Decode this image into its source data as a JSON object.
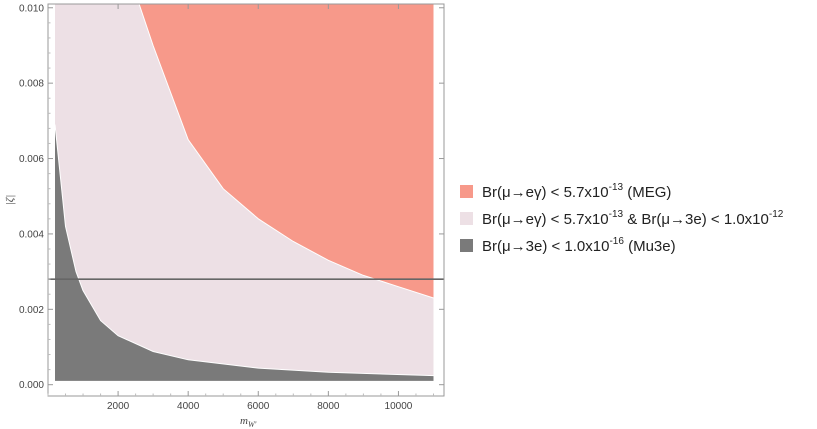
{
  "chart_data": {
    "type": "area",
    "title": "",
    "xlabel": "m",
    "xlabel_sub": "W'",
    "ylabel": "|ζ|",
    "xlim": [
      0,
      11300
    ],
    "ylim": [
      -0.0003,
      0.0101
    ],
    "xticks": [
      2000,
      4000,
      6000,
      8000,
      10000
    ],
    "xtick_labels": [
      "2000",
      "4000",
      "6000",
      "8000",
      "10000"
    ],
    "yticks": [
      0.0,
      0.002,
      0.004,
      0.006,
      0.008,
      0.01
    ],
    "ytick_labels": [
      "0.000",
      "0.002",
      "0.004",
      "0.006",
      "0.008",
      "0.010"
    ],
    "x_domain": [
      200,
      11000
    ],
    "horizontal_line": {
      "y": 0.0028,
      "color": "#666666"
    },
    "regions": [
      {
        "name": "Br(μ→eγ) < 5.7x10^-13 & Br(μ→3e) < 1.0x10^-12",
        "color": "#EDE0E5",
        "lower": "region-0",
        "boundary_upper": [
          [
            200,
            0.0069
          ],
          [
            500,
            0.0042
          ],
          [
            800,
            0.003
          ],
          [
            1000,
            0.0025
          ],
          [
            1500,
            0.0017
          ],
          [
            2000,
            0.0013
          ],
          [
            3000,
            0.00088
          ],
          [
            4000,
            0.00066
          ],
          [
            6000,
            0.00044
          ],
          [
            8000,
            0.00033
          ],
          [
            11000,
            0.00024
          ]
        ]
      },
      {
        "name": "Br(μ→eγ) < 5.7x10^-13 (MEG)",
        "color": "#F7998A",
        "boundary_lower": [
          [
            2600,
            0.0101
          ],
          [
            3000,
            0.009
          ],
          [
            4000,
            0.0065
          ],
          [
            5000,
            0.0052
          ],
          [
            6000,
            0.0044
          ],
          [
            7000,
            0.0038
          ],
          [
            8000,
            0.0033
          ],
          [
            9000,
            0.0029
          ],
          [
            10000,
            0.0026
          ],
          [
            11000,
            0.0023
          ]
        ]
      },
      {
        "name": "Br(μ→3e) < 1.0x10^-16 (Mu3e)",
        "color": "#7A7A7A",
        "boundary_upper": [
          [
            200,
            0.0069
          ],
          [
            500,
            0.0042
          ],
          [
            800,
            0.003
          ],
          [
            1000,
            0.0025
          ],
          [
            1500,
            0.0017
          ],
          [
            2000,
            0.0013
          ],
          [
            3000,
            0.00088
          ],
          [
            4000,
            0.00066
          ],
          [
            6000,
            0.00044
          ],
          [
            8000,
            0.00033
          ],
          [
            11000,
            0.00024
          ]
        ]
      }
    ],
    "legend": {
      "position": "right",
      "items": [
        {
          "color": "#F7998A",
          "text": "Br(μ→eγ) < 5.7x10",
          "exp": "-13",
          "text2": " (MEG)",
          "exp2": "",
          "text3": ""
        },
        {
          "color": "#EDE0E5",
          "text": "Br(μ→eγ) < 5.7x10",
          "exp": "-13",
          "text2": "  &  Br(μ→3e) < 1.0x10",
          "exp2": "-12",
          "text3": ""
        },
        {
          "color": "#7A7A7A",
          "text": "Br(μ→3e) < 1.0x10",
          "exp": "-16",
          "text2": " (Mu3e)",
          "exp2": "",
          "text3": ""
        }
      ]
    }
  }
}
